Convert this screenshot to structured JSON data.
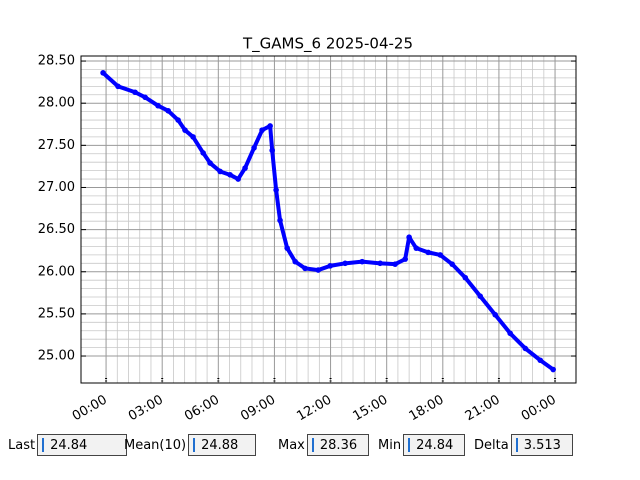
{
  "chart_data": {
    "type": "line",
    "title": "T_GAMS_6 2025-04-25",
    "series": [
      {
        "name": "T_GAMS_6",
        "color": "#0000ff",
        "x": [
          -0.16,
          0.64,
          1.55,
          2.09,
          2.78,
          3.32,
          3.85,
          4.22,
          4.65,
          5.19,
          5.56,
          6.1,
          6.63,
          7.06,
          7.43,
          7.91,
          8.34,
          8.77,
          8.88,
          9.09,
          9.3,
          9.68,
          10.11,
          10.64,
          11.34,
          11.98,
          12.78,
          13.69,
          14.65,
          15.45,
          15.99,
          16.2,
          16.58,
          17.22,
          17.86,
          18.5,
          19.2,
          20.0,
          20.8,
          21.6,
          22.41,
          23.21,
          23.9
        ],
        "values": [
          28.36,
          28.2,
          28.13,
          28.07,
          27.97,
          27.91,
          27.8,
          27.68,
          27.6,
          27.41,
          27.29,
          27.19,
          27.15,
          27.1,
          27.23,
          27.47,
          27.68,
          27.73,
          27.44,
          26.97,
          26.61,
          26.28,
          26.12,
          26.04,
          26.02,
          26.07,
          26.1,
          26.12,
          26.1,
          26.09,
          26.15,
          26.41,
          26.28,
          26.23,
          26.2,
          26.09,
          25.93,
          25.71,
          25.49,
          25.27,
          25.09,
          24.95,
          24.84
        ]
      }
    ],
    "xlim": [
      -1.34,
      25.12
    ],
    "xticks": [
      {
        "value": 0,
        "label": "00:00"
      },
      {
        "value": 3,
        "label": "03:00"
      },
      {
        "value": 6,
        "label": "06:00"
      },
      {
        "value": 9,
        "label": "09:00"
      },
      {
        "value": 12,
        "label": "12:00"
      },
      {
        "value": 15,
        "label": "15:00"
      },
      {
        "value": 18,
        "label": "18:00"
      },
      {
        "value": 21,
        "label": "21:00"
      },
      {
        "value": 24,
        "label": "00:00"
      }
    ],
    "ylim": [
      24.68,
      28.56
    ],
    "yticks": [
      {
        "value": 25,
        "label": "25.00"
      },
      {
        "value": 25.5,
        "label": "25.50"
      },
      {
        "value": 26,
        "label": "26.00"
      },
      {
        "value": 26.5,
        "label": "26.50"
      },
      {
        "value": 27,
        "label": "27.00"
      },
      {
        "value": 27.5,
        "label": "27.50"
      },
      {
        "value": 28,
        "label": "28.00"
      },
      {
        "value": 28.5,
        "label": "28.50"
      }
    ],
    "grid": true,
    "minor_grid": true
  },
  "stats": [
    {
      "label": "Last",
      "value": "24.84"
    },
    {
      "label": "Mean(10)",
      "value": "24.88"
    },
    {
      "label": "Max",
      "value": "28.36"
    },
    {
      "label": "Min",
      "value": "24.84"
    },
    {
      "label": "Delta",
      "value": "3.513"
    }
  ]
}
